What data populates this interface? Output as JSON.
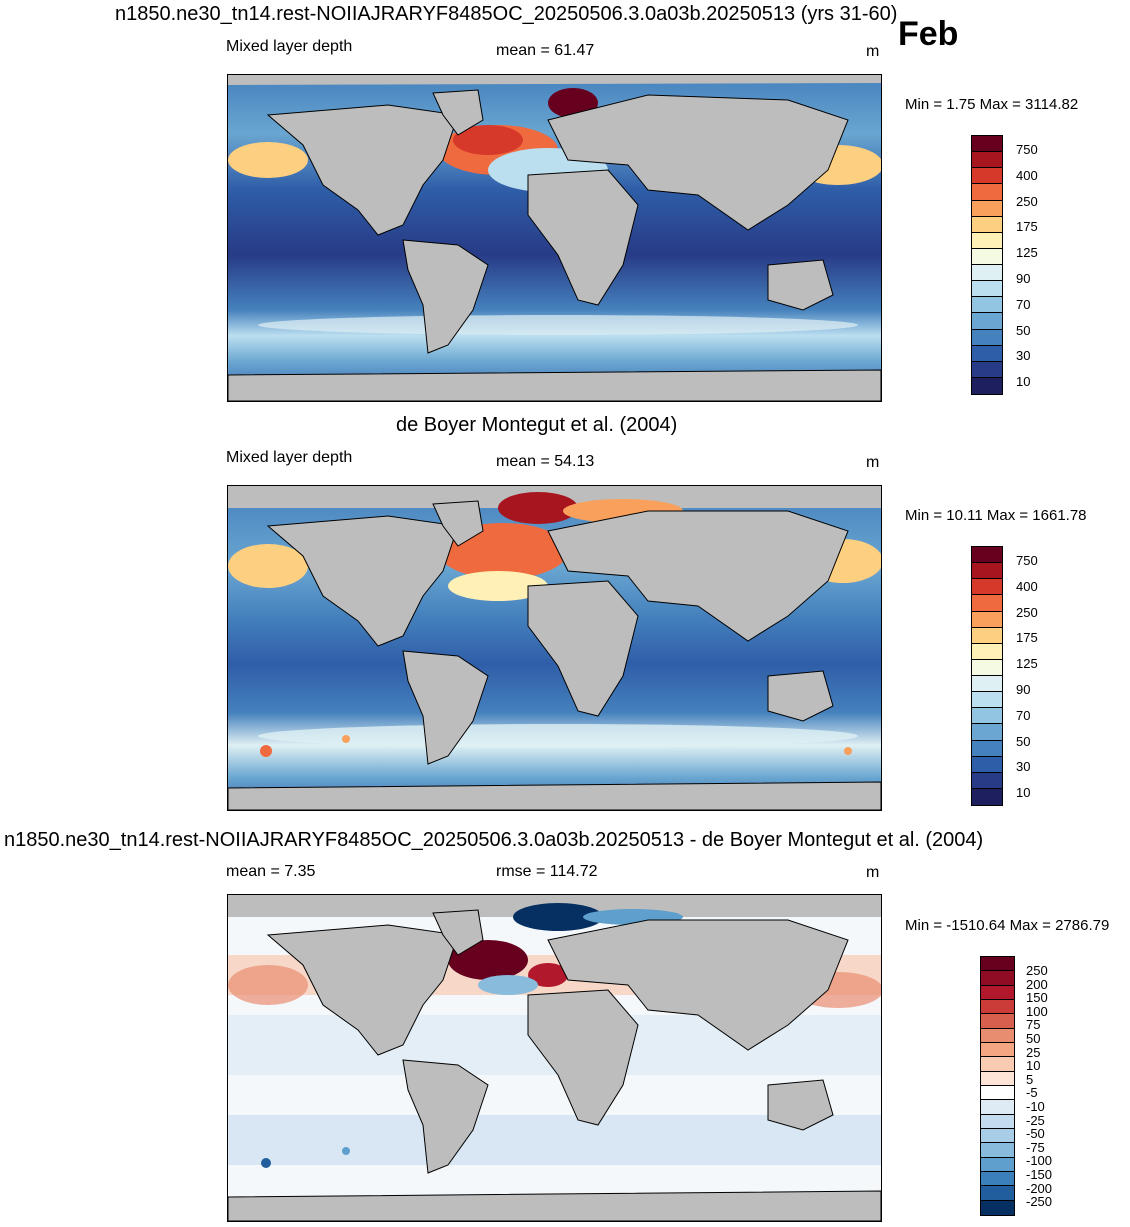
{
  "header": {
    "top_title": "n1850.ne30_tn14.rest-NOIIAJRARYF8485OC_20250506.3.0a03b.20250513 (yrs 31-60)",
    "month": "Feb"
  },
  "panels": [
    {
      "id": "model",
      "left_label": "Mixed layer depth",
      "center_label": "mean =  61.47",
      "units": "m",
      "minmax": "Min =   1.75 Max = 3114.82",
      "ticks": [
        "750",
        "400",
        "250",
        "175",
        "125",
        "90",
        "70",
        "50",
        "30",
        "10"
      ]
    },
    {
      "id": "obs",
      "title": "de Boyer Montegut et al. (2004)",
      "left_label": "Mixed layer depth",
      "center_label": "mean =  54.13",
      "units": "m",
      "minmax": "Min =  10.11 Max = 1661.78",
      "ticks": [
        "750",
        "400",
        "250",
        "175",
        "125",
        "90",
        "70",
        "50",
        "30",
        "10"
      ]
    },
    {
      "id": "diff",
      "title": "n1850.ne30_tn14.rest-NOIIAJRARYF8485OC_20250506.3.0a03b.20250513 - de Boyer Montegut et al. (2004)",
      "left_label": "mean =   7.35",
      "center_label": "rmse = 114.72",
      "units": "m",
      "minmax": "Min = -1510.64 Max = 2786.79",
      "ticks": [
        "250",
        "200",
        "150",
        "100",
        "75",
        "50",
        "25",
        "10",
        "5",
        "-5",
        "-10",
        "-25",
        "-50",
        "-75",
        "-100",
        "-150",
        "-200",
        "-250"
      ]
    }
  ],
  "colors": {
    "land": "#bdbdbd",
    "depth_scale": [
      "#67001f",
      "#a7151f",
      "#d6392a",
      "#ef6a3e",
      "#f9a05c",
      "#fdcf80",
      "#fff0b5",
      "#f5fbe3",
      "#dff0f4",
      "#bcdff0",
      "#92c5e2",
      "#6aa6d1",
      "#4581bd",
      "#2f5ea8",
      "#283b86",
      "#1e1f5f"
    ],
    "diff_scale": [
      "#67001f",
      "#8f0c24",
      "#b2182b",
      "#cb3b38",
      "#d6604d",
      "#e98d71",
      "#f4a582",
      "#f8cbb2",
      "#fde4d6",
      "#ffffff",
      "#deebf5",
      "#c4dcee",
      "#a8cde6",
      "#88bbdc",
      "#5f9fcd",
      "#3c80bb",
      "#215e9e",
      "#053061"
    ]
  }
}
